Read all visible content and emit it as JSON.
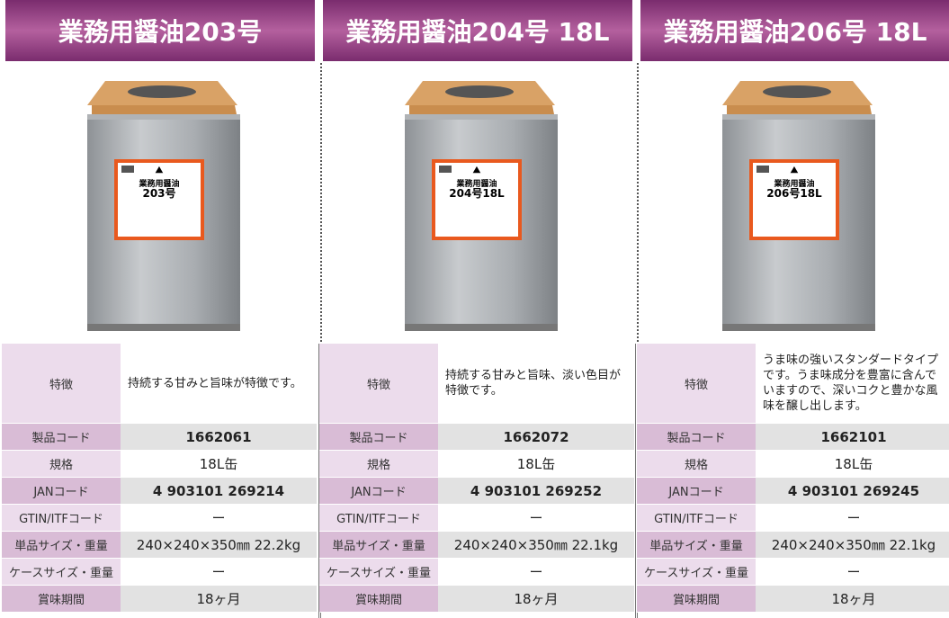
{
  "row_labels": [
    "特徴",
    "製品コード",
    "規格",
    "JANコード",
    "GTIN/ITFコード",
    "単品サイズ・重量",
    "ケースサイズ・重量",
    "賞味期間"
  ],
  "products": [
    {
      "title": "業務用醤油203号",
      "can_label": "業務用醤油",
      "can_number": "203号",
      "values": [
        "持続する甘みと旨味が特徴です。",
        "1662061",
        "18L缶",
        "4 903101 269214",
        "ー",
        "240×240×350㎜ 22.2kg",
        "ー",
        "18ヶ月"
      ]
    },
    {
      "title": "業務用醤油204号 18L",
      "can_label": "業務用醤油",
      "can_number": "204号18L",
      "values": [
        "持続する甘みと旨味、淡い色目が特徴です。",
        "1662072",
        "18L缶",
        "4 903101 269252",
        "ー",
        "240×240×350㎜ 22.1kg",
        "ー",
        "18ヶ月"
      ]
    },
    {
      "title": "業務用醤油206号 18L",
      "can_label": "業務用醤油",
      "can_number": "206号18L",
      "values": [
        "うま味の強いスタンダードタイプです。うま味成分を豊富に含んでいますので、深いコクと豊かな風味を醸し出します。",
        "1662101",
        "18L缶",
        "4 903101 269245",
        "ー",
        "240×240×350㎜ 22.1kg",
        "ー",
        "18ヶ月"
      ]
    }
  ]
}
